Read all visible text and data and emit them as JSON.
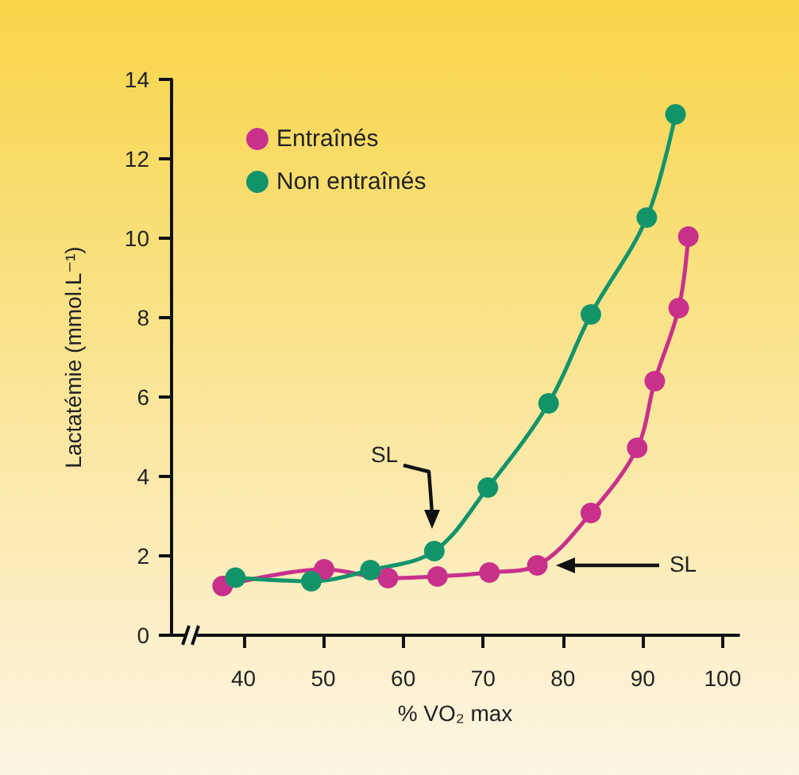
{
  "chart_data": {
    "type": "line",
    "xlabel": "% VO₂ max",
    "ylabel": "Lactatémie (mmol.L⁻¹)",
    "series": [
      {
        "name": "Entraînés",
        "color": "#c8308c",
        "x": [
          37.4,
          50.1,
          58.1,
          64.3,
          70.8,
          76.8,
          83.5,
          89.3,
          91.5,
          94.5,
          95.7
        ],
        "values": [
          1.24,
          1.66,
          1.44,
          1.48,
          1.58,
          1.76,
          3.08,
          4.72,
          6.4,
          8.24,
          10.04
        ]
      },
      {
        "name": "Non entraînés",
        "color": "#12946a",
        "x": [
          39.0,
          48.5,
          55.9,
          63.9,
          70.6,
          78.2,
          83.5,
          90.5,
          94.1
        ],
        "values": [
          1.45,
          1.36,
          1.64,
          2.12,
          3.72,
          5.84,
          8.08,
          10.52,
          13.12
        ]
      }
    ],
    "xlim": [
      31,
      102
    ],
    "xticks": [
      40,
      50,
      60,
      70,
      80,
      90,
      100
    ],
    "ylim": [
      0,
      14
    ],
    "yticks": [
      0,
      2,
      4,
      6,
      8,
      10,
      12,
      14
    ],
    "marker": "circle",
    "line_style": "solid",
    "grid": false,
    "legend": "top left",
    "annotations": [
      "SL",
      "SL"
    ]
  }
}
